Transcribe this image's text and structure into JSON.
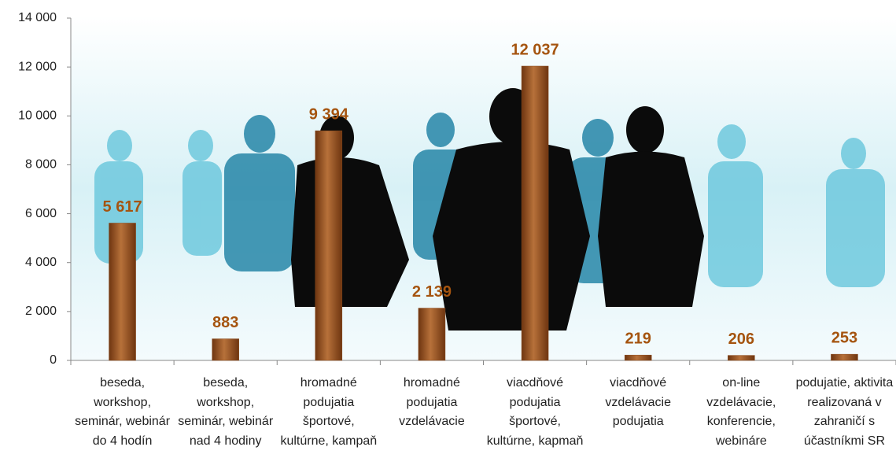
{
  "chart_data": {
    "type": "bar",
    "categories": [
      "beseda, workshop, seminár, webinár do 4 hodín",
      "beseda, workshop, seminár, webinár nad 4 hodiny",
      "hromadné podujatia športové, kultúrne, kampaň",
      "hromadné podujatia vzdelávacie",
      "viacdňové podujatia športové, kultúrne, kapmaň",
      "viacdňové vzdelávacie podujatia",
      "on-line vzdelávacie, konferencie, webináre",
      "podujatie, aktivita realizovaná v zahraničí s účastníkmi SR"
    ],
    "values": [
      5617,
      883,
      9394,
      2139,
      12037,
      219,
      206,
      253
    ],
    "value_labels": [
      "5 617",
      "883",
      "9 394",
      "2 139",
      "12 037",
      "219",
      "206",
      "253"
    ],
    "color": "#8b4a1c",
    "ylim": [
      0,
      14000
    ],
    "yticks": [
      0,
      {
        "value": 2000,
        "label": "2 000"
      },
      {
        "value": 4000,
        "label": "4 000"
      },
      {
        "value": 6000,
        "label": "6 000"
      },
      {
        "value": 8000,
        "label": "8 000"
      },
      {
        "value": 10000,
        "label": "10 000"
      },
      {
        "value": 12000,
        "label": "12 000"
      },
      {
        "value": 14000,
        "label": "14 000"
      }
    ]
  }
}
